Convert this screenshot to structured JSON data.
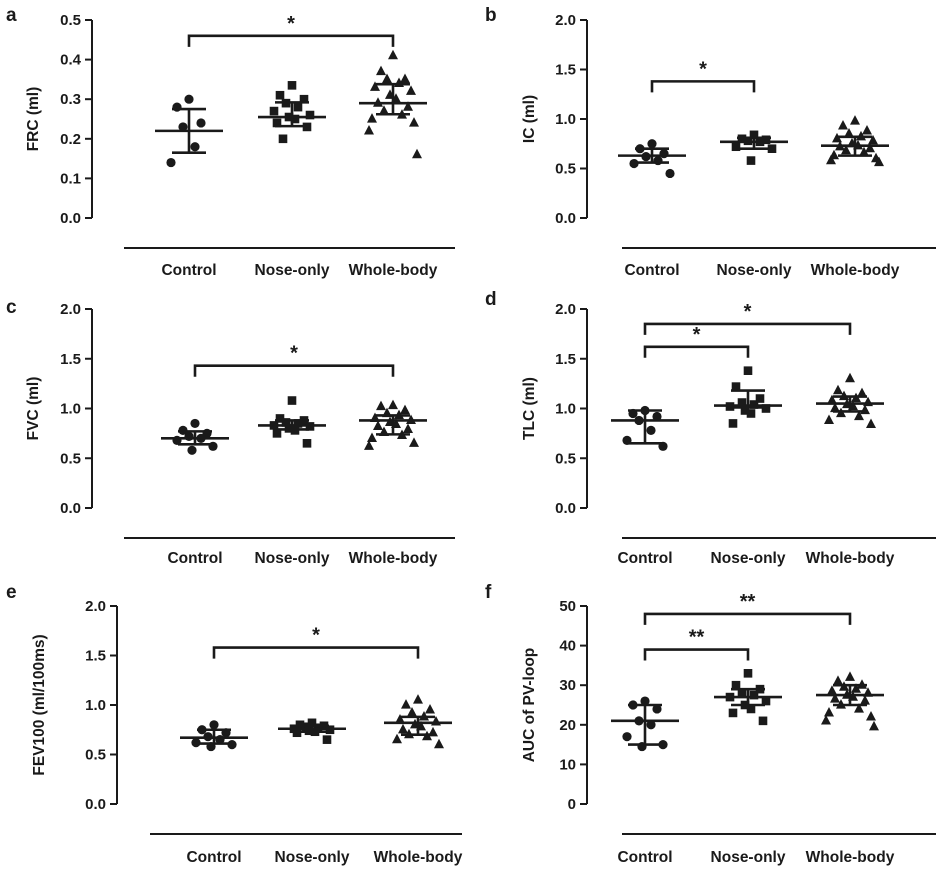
{
  "chart_data": [
    {
      "panel": "a",
      "type": "scatter",
      "ylabel": "FRC (ml)",
      "categories": [
        "Control",
        "Nose-only",
        "Whole-body"
      ],
      "ylim": [
        0,
        0.5
      ],
      "yticks": [
        "0.0",
        "0.1",
        "0.2",
        "0.3",
        "0.4",
        "0.5"
      ],
      "series": [
        {
          "name": "Control",
          "marker": "circle",
          "values": [
            0.3,
            0.28,
            0.24,
            0.23,
            0.18,
            0.14
          ],
          "mean": 0.22,
          "sd": [
            0.165,
            0.275
          ]
        },
        {
          "name": "Nose-only",
          "marker": "square",
          "values": [
            0.335,
            0.31,
            0.3,
            0.29,
            0.28,
            0.27,
            0.26,
            0.255,
            0.25,
            0.24,
            0.23,
            0.2
          ],
          "mean": 0.255,
          "sd": [
            0.232,
            0.292
          ]
        },
        {
          "name": "Whole-body",
          "marker": "triangle",
          "values": [
            0.41,
            0.37,
            0.35,
            0.35,
            0.34,
            0.33,
            0.32,
            0.31,
            0.3,
            0.29,
            0.28,
            0.27,
            0.26,
            0.25,
            0.24,
            0.22,
            0.16
          ],
          "mean": 0.29,
          "sd": [
            0.262,
            0.338
          ]
        }
      ],
      "significance": [
        {
          "label": "*",
          "from": "Control",
          "to": "Whole-body",
          "y": 0.46
        }
      ]
    },
    {
      "panel": "b",
      "type": "scatter",
      "ylabel": "IC (ml)",
      "categories": [
        "Control",
        "Nose-only",
        "Whole-body"
      ],
      "ylim": [
        0,
        2.0
      ],
      "yticks": [
        "0.0",
        "0.5",
        "1.0",
        "1.5",
        "2.0"
      ],
      "series": [
        {
          "name": "Control",
          "marker": "circle",
          "values": [
            0.75,
            0.7,
            0.65,
            0.62,
            0.58,
            0.55,
            0.45
          ],
          "mean": 0.63,
          "sd": [
            0.56,
            0.7
          ]
        },
        {
          "name": "Nose-only",
          "marker": "square",
          "values": [
            0.84,
            0.8,
            0.79,
            0.78,
            0.77,
            0.72,
            0.7,
            0.58
          ],
          "mean": 0.77,
          "sd": [
            0.7,
            0.81
          ]
        },
        {
          "name": "Whole-body",
          "marker": "triangle",
          "values": [
            0.98,
            0.93,
            0.88,
            0.85,
            0.82,
            0.8,
            0.78,
            0.75,
            0.73,
            0.72,
            0.7,
            0.68,
            0.66,
            0.63,
            0.6,
            0.58,
            0.56
          ],
          "mean": 0.73,
          "sd": [
            0.63,
            0.82
          ]
        }
      ],
      "significance": [
        {
          "label": "*",
          "from": "Control",
          "to": "Nose-only",
          "y": 1.38
        }
      ]
    },
    {
      "panel": "c",
      "type": "scatter",
      "ylabel": "FVC (ml)",
      "categories": [
        "Control",
        "Nose-only",
        "Whole-body"
      ],
      "ylim": [
        0,
        2.0
      ],
      "yticks": [
        "0.0",
        "0.5",
        "1.0",
        "1.5",
        "2.0"
      ],
      "series": [
        {
          "name": "Control",
          "marker": "circle",
          "values": [
            0.85,
            0.78,
            0.75,
            0.72,
            0.7,
            0.68,
            0.62,
            0.58
          ],
          "mean": 0.7,
          "sd": [
            0.64,
            0.77
          ]
        },
        {
          "name": "Nose-only",
          "marker": "square",
          "values": [
            1.08,
            0.9,
            0.88,
            0.86,
            0.85,
            0.83,
            0.82,
            0.8,
            0.78,
            0.75,
            0.65
          ],
          "mean": 0.83,
          "sd": [
            0.79,
            0.88
          ]
        },
        {
          "name": "Whole-body",
          "marker": "triangle",
          "values": [
            1.03,
            1.02,
            0.98,
            0.95,
            0.93,
            0.9,
            0.88,
            0.86,
            0.84,
            0.82,
            0.79,
            0.76,
            0.73,
            0.7,
            0.65,
            0.62
          ],
          "mean": 0.88,
          "sd": [
            0.74,
            0.93
          ]
        }
      ],
      "significance": [
        {
          "label": "*",
          "from": "Control",
          "to": "Whole-body",
          "y": 1.43
        }
      ]
    },
    {
      "panel": "d",
      "type": "scatter",
      "ylabel": "TLC (ml)",
      "categories": [
        "Control",
        "Nose-only",
        "Whole-body"
      ],
      "ylim": [
        0,
        2.0
      ],
      "yticks": [
        "0.0",
        "0.5",
        "1.0",
        "1.5",
        "2.0"
      ],
      "series": [
        {
          "name": "Control",
          "marker": "circle",
          "values": [
            0.98,
            0.95,
            0.92,
            0.88,
            0.78,
            0.68,
            0.62
          ],
          "mean": 0.88,
          "sd": [
            0.65,
            0.98
          ]
        },
        {
          "name": "Nose-only",
          "marker": "square",
          "values": [
            1.38,
            1.22,
            1.1,
            1.06,
            1.04,
            1.02,
            1.0,
            0.98,
            0.95,
            0.85
          ],
          "mean": 1.03,
          "sd": [
            1.01,
            1.18
          ]
        },
        {
          "name": "Whole-body",
          "marker": "triangle",
          "values": [
            1.3,
            1.18,
            1.15,
            1.12,
            1.1,
            1.08,
            1.06,
            1.04,
            1.02,
            1.0,
            0.98,
            0.95,
            0.92,
            0.88,
            0.84
          ],
          "mean": 1.05,
          "sd": [
            0.97,
            1.12
          ]
        }
      ],
      "significance": [
        {
          "label": "*",
          "from": "Control",
          "to": "Nose-only",
          "y": 1.62
        },
        {
          "label": "*",
          "from": "Control",
          "to": "Whole-body",
          "y": 1.85
        }
      ]
    },
    {
      "panel": "e",
      "type": "scatter",
      "ylabel": "FEV100 (ml/100ms)",
      "categories": [
        "Control",
        "Nose-only",
        "Whole-body"
      ],
      "ylim": [
        0,
        2.0
      ],
      "yticks": [
        "0.0",
        "0.5",
        "1.0",
        "1.5",
        "2.0"
      ],
      "series": [
        {
          "name": "Control",
          "marker": "circle",
          "values": [
            0.8,
            0.75,
            0.72,
            0.68,
            0.65,
            0.62,
            0.6,
            0.58
          ],
          "mean": 0.67,
          "sd": [
            0.61,
            0.75
          ]
        },
        {
          "name": "Nose-only",
          "marker": "square",
          "values": [
            0.82,
            0.8,
            0.79,
            0.78,
            0.77,
            0.76,
            0.75,
            0.74,
            0.73,
            0.72,
            0.65
          ],
          "mean": 0.76,
          "sd": [
            0.73,
            0.79
          ]
        },
        {
          "name": "Whole-body",
          "marker": "triangle",
          "values": [
            1.05,
            1.0,
            0.95,
            0.92,
            0.88,
            0.85,
            0.83,
            0.8,
            0.78,
            0.75,
            0.72,
            0.7,
            0.68,
            0.65,
            0.6
          ],
          "mean": 0.82,
          "sd": [
            0.7,
            0.88
          ]
        }
      ],
      "significance": [
        {
          "label": "*",
          "from": "Control",
          "to": "Whole-body",
          "y": 1.58
        }
      ]
    },
    {
      "panel": "f",
      "type": "scatter",
      "ylabel": "AUC of PV-loop",
      "categories": [
        "Control",
        "Nose-only",
        "Whole-body"
      ],
      "ylim": [
        0,
        50
      ],
      "yticks": [
        "0",
        "10",
        "20",
        "30",
        "40",
        "50"
      ],
      "series": [
        {
          "name": "Control",
          "marker": "circle",
          "values": [
            26,
            25,
            24,
            21,
            20,
            17,
            15,
            14.5
          ],
          "mean": 21,
          "sd": [
            15,
            25
          ]
        },
        {
          "name": "Nose-only",
          "marker": "square",
          "values": [
            33,
            30,
            29,
            28,
            27.5,
            27,
            26,
            25,
            24,
            23,
            21
          ],
          "mean": 27,
          "sd": [
            25,
            29
          ]
        },
        {
          "name": "Whole-body",
          "marker": "triangle",
          "values": [
            32,
            31,
            30,
            29.5,
            29,
            28.5,
            28,
            27.5,
            27,
            26.5,
            26,
            25,
            24,
            23,
            22,
            21,
            19.5
          ],
          "mean": 27.5,
          "sd": [
            25,
            30
          ]
        }
      ],
      "significance": [
        {
          "label": "**",
          "from": "Control",
          "to": "Nose-only",
          "y": 39
        },
        {
          "label": "**",
          "from": "Control",
          "to": "Whole-body",
          "y": 48
        }
      ]
    }
  ]
}
